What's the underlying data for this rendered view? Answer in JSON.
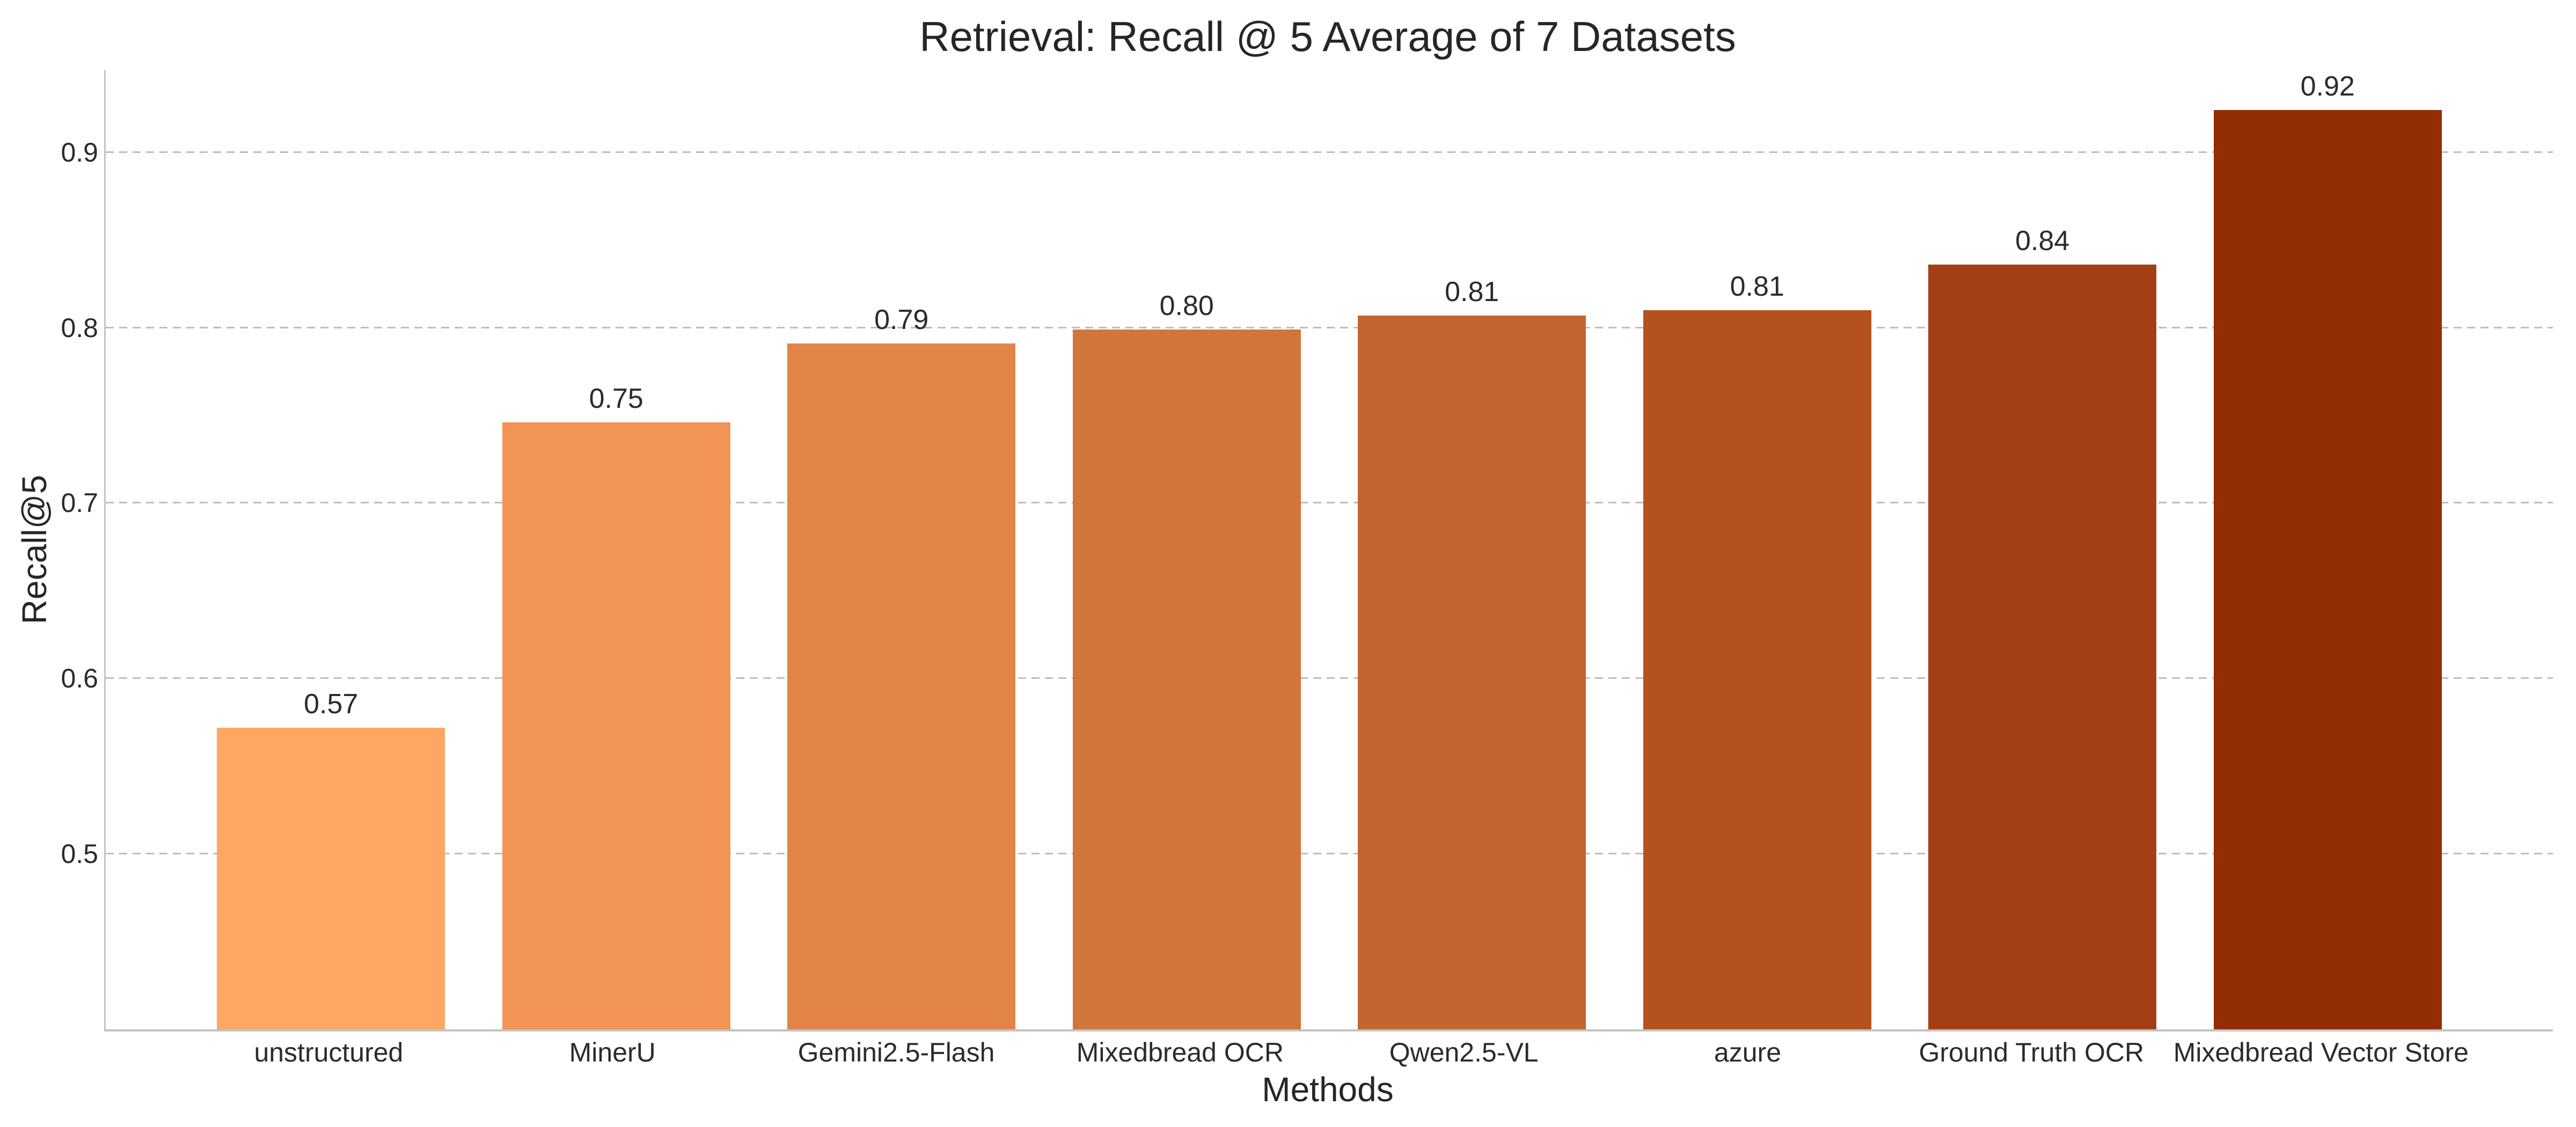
{
  "chart_data": {
    "type": "bar",
    "title": "Retrieval: Recall @ 5 Average of 7 Datasets",
    "xlabel": "Methods",
    "ylabel": "Recall@5",
    "categories": [
      "unstructured",
      "MinerU",
      "Gemini2.5-Flash",
      "Mixedbread OCR",
      "Qwen2.5-VL",
      "azure",
      "Ground Truth OCR",
      "Mixedbread Vector Store"
    ],
    "values": [
      0.572,
      0.746,
      0.791,
      0.799,
      0.807,
      0.81,
      0.836,
      0.924
    ],
    "value_labels": [
      "0.57",
      "0.75",
      "0.79",
      "0.80",
      "0.81",
      "0.81",
      "0.84",
      "0.92"
    ],
    "bar_colors": [
      "#fda763",
      "#f29455",
      "#e28448",
      "#d0763a",
      "#c2652e",
      "#b4511d",
      "#a43f14",
      "#932d04"
    ],
    "ylim": [
      0.4,
      0.9467
    ],
    "yticks": [
      0.5,
      0.6,
      0.7,
      0.8,
      0.9
    ],
    "ytick_labels": [
      "0.5",
      "0.6",
      "0.7",
      "0.8",
      "0.9"
    ],
    "bar_width_fraction": 0.8,
    "grid": "horizontal dashed",
    "legend": "none"
  },
  "colors": {
    "background": "#ffffff",
    "text": "#2b2b2b",
    "axis_spine": "#c3c3c3",
    "gridline": "#bdbdbd"
  }
}
